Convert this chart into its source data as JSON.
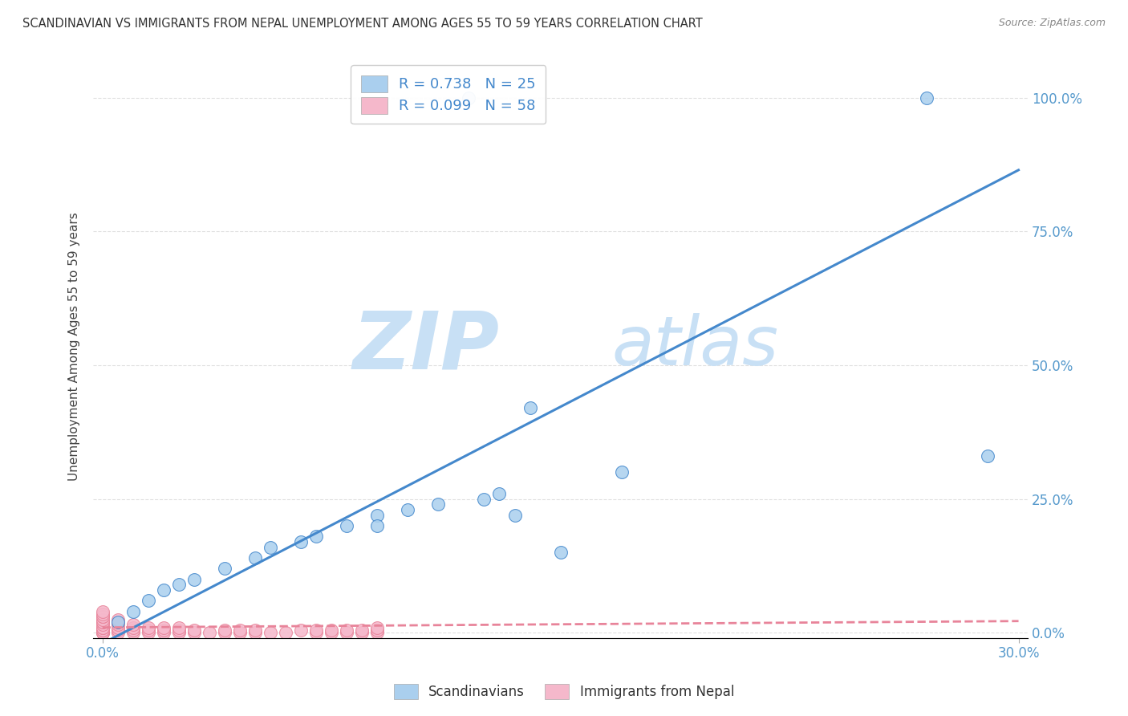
{
  "title": "SCANDINAVIAN VS IMMIGRANTS FROM NEPAL UNEMPLOYMENT AMONG AGES 55 TO 59 YEARS CORRELATION CHART",
  "source": "Source: ZipAtlas.com",
  "ylabel": "Unemployment Among Ages 55 to 59 years",
  "xlim": [
    0.0,
    0.3
  ],
  "ylim": [
    -0.01,
    1.08
  ],
  "scandinavian_color": "#aacfee",
  "nepal_color": "#f5b8cb",
  "line_scand_color": "#4488cc",
  "line_nepal_color": "#e8849a",
  "legend_label_scand": "Scandinavians",
  "legend_label_nepal": "Immigrants from Nepal",
  "R_scand": 0.738,
  "N_scand": 25,
  "R_nepal": 0.099,
  "N_nepal": 58,
  "watermark_zip": "ZIP",
  "watermark_atlas": "atlas",
  "watermark_color": "#c8e0f5",
  "scand_x": [
    0.005,
    0.01,
    0.015,
    0.02,
    0.025,
    0.03,
    0.04,
    0.05,
    0.055,
    0.065,
    0.07,
    0.08,
    0.09,
    0.09,
    0.1,
    0.11,
    0.12,
    0.125,
    0.13,
    0.135,
    0.14,
    0.15,
    0.17,
    0.27,
    0.29
  ],
  "scand_y": [
    0.02,
    0.04,
    0.06,
    0.08,
    0.09,
    0.1,
    0.12,
    0.14,
    0.16,
    0.17,
    0.18,
    0.2,
    0.22,
    0.2,
    0.23,
    0.24,
    1.0,
    0.25,
    0.26,
    0.22,
    0.42,
    0.15,
    0.3,
    1.0,
    0.33
  ],
  "nepal_x": [
    0.0,
    0.0,
    0.0,
    0.0,
    0.0,
    0.0,
    0.0,
    0.0,
    0.0,
    0.0,
    0.0,
    0.0,
    0.0,
    0.0,
    0.0,
    0.0,
    0.005,
    0.005,
    0.005,
    0.005,
    0.005,
    0.005,
    0.01,
    0.01,
    0.01,
    0.01,
    0.015,
    0.015,
    0.015,
    0.02,
    0.02,
    0.02,
    0.025,
    0.025,
    0.025,
    0.03,
    0.03,
    0.035,
    0.04,
    0.04,
    0.045,
    0.045,
    0.05,
    0.05,
    0.055,
    0.06,
    0.065,
    0.07,
    0.07,
    0.075,
    0.075,
    0.08,
    0.08,
    0.085,
    0.085,
    0.09,
    0.09,
    0.09
  ],
  "nepal_y": [
    0.0,
    0.0,
    0.0,
    0.0,
    0.005,
    0.005,
    0.01,
    0.01,
    0.015,
    0.02,
    0.02,
    0.025,
    0.03,
    0.03,
    0.035,
    0.04,
    0.0,
    0.005,
    0.01,
    0.015,
    0.02,
    0.025,
    0.0,
    0.005,
    0.01,
    0.015,
    0.0,
    0.005,
    0.01,
    0.0,
    0.005,
    0.01,
    0.0,
    0.005,
    0.01,
    0.0,
    0.005,
    0.0,
    0.0,
    0.005,
    0.0,
    0.005,
    0.0,
    0.005,
    0.0,
    0.0,
    0.005,
    0.0,
    0.005,
    0.0,
    0.005,
    0.0,
    0.005,
    0.0,
    0.005,
    0.0,
    0.005,
    0.01
  ],
  "scand_line_x": [
    0.0,
    0.3
  ],
  "scand_line_y": [
    -0.02,
    0.865
  ],
  "nepal_line_x": [
    0.0,
    0.3
  ],
  "nepal_line_y": [
    0.01,
    0.022
  ],
  "ytick_vals": [
    0.0,
    0.25,
    0.5,
    0.75,
    1.0
  ],
  "ytick_labels": [
    "0.0%",
    "25.0%",
    "50.0%",
    "75.0%",
    "100.0%"
  ],
  "xtick_vals": [
    0.0,
    0.3
  ],
  "xtick_labels": [
    "0.0%",
    "30.0%"
  ],
  "tick_color": "#5599cc",
  "grid_color": "#dddddd",
  "background_color": "#ffffff"
}
